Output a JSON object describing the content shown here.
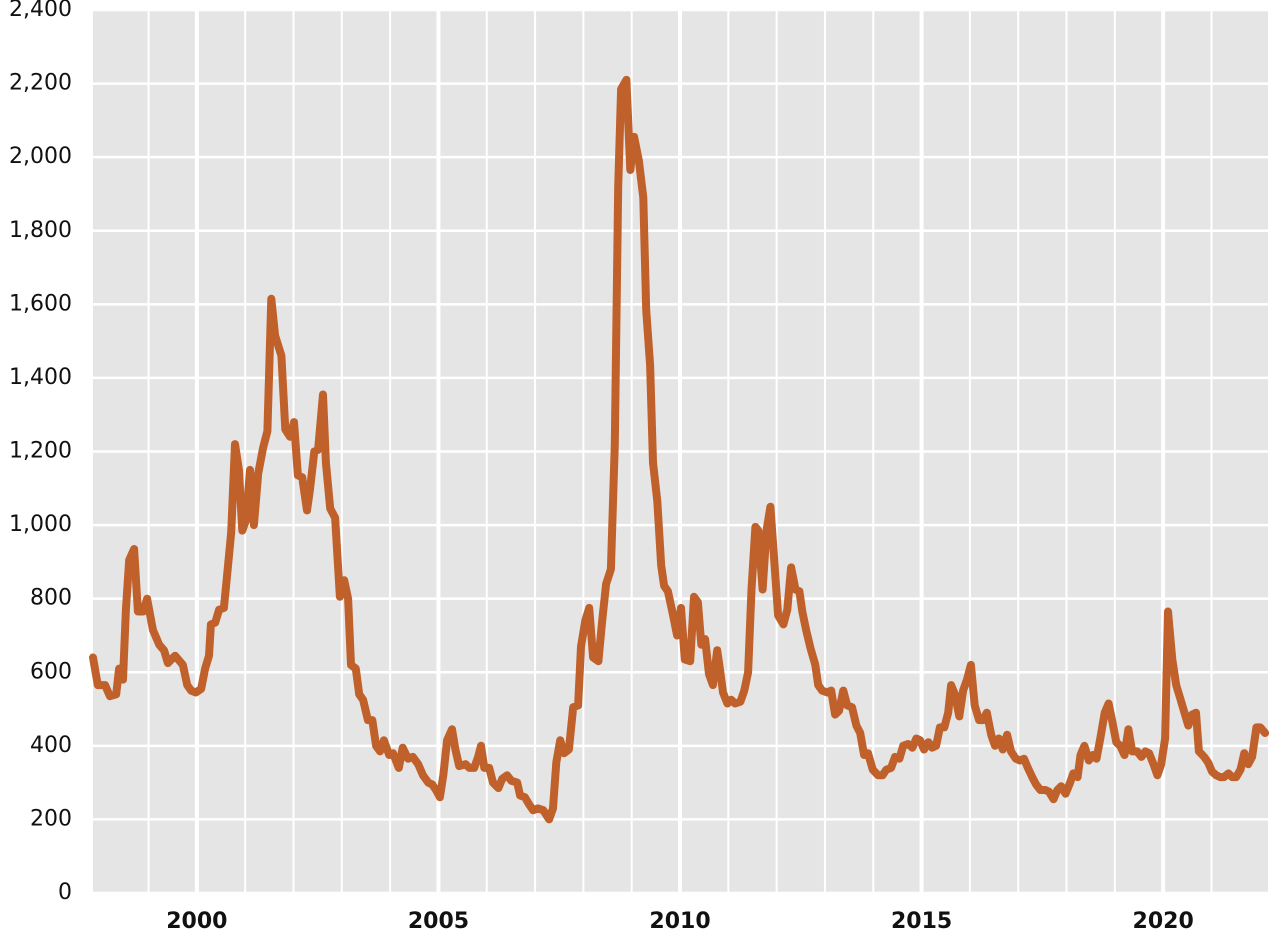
{
  "chart_data": {
    "type": "line",
    "x": [
      1997.85,
      1997.95,
      1998.1,
      1998.2,
      1998.33,
      1998.39,
      1998.47,
      1998.53,
      1998.6,
      1998.7,
      1998.78,
      1998.89,
      1998.97,
      1999.09,
      1999.22,
      1999.32,
      1999.4,
      1999.55,
      1999.71,
      1999.8,
      1999.88,
      1999.98,
      2000.09,
      2000.17,
      2000.25,
      2000.29,
      2000.38,
      2000.46,
      2000.56,
      2000.62,
      2000.71,
      2000.79,
      2000.87,
      2000.94,
      2001.02,
      2001.1,
      2001.18,
      2001.27,
      2001.37,
      2001.46,
      2001.54,
      2001.62,
      2001.75,
      2001.83,
      2001.93,
      2002.01,
      2002.09,
      2002.18,
      2002.28,
      2002.34,
      2002.43,
      2002.51,
      2002.61,
      2002.67,
      2002.76,
      2002.86,
      2002.96,
      2003.05,
      2003.13,
      2003.19,
      2003.29,
      2003.36,
      2003.44,
      2003.54,
      2003.63,
      2003.71,
      2003.79,
      2003.87,
      2003.98,
      2004.06,
      2004.18,
      2004.26,
      2004.37,
      2004.47,
      2004.58,
      2004.68,
      2004.79,
      2004.87,
      2004.95,
      2005.03,
      2005.1,
      2005.18,
      2005.28,
      2005.35,
      2005.43,
      2005.56,
      2005.64,
      2005.74,
      2005.82,
      2005.88,
      2005.95,
      2006.05,
      2006.13,
      2006.24,
      2006.32,
      2006.42,
      2006.51,
      2006.63,
      2006.69,
      2006.79,
      2006.88,
      2006.96,
      2007.06,
      2007.17,
      2007.29,
      2007.37,
      2007.44,
      2007.52,
      2007.6,
      2007.7,
      2007.79,
      2007.89,
      2007.95,
      2008.04,
      2008.12,
      2008.2,
      2008.31,
      2008.39,
      2008.47,
      2008.57,
      2008.65,
      2008.72,
      2008.78,
      2008.89,
      2008.97,
      2009.05,
      2009.15,
      2009.24,
      2009.3,
      2009.38,
      2009.44,
      2009.53,
      2009.61,
      2009.67,
      2009.75,
      2009.84,
      2009.94,
      2010.02,
      2010.1,
      2010.21,
      2010.29,
      2010.37,
      2010.44,
      2010.52,
      2010.6,
      2010.68,
      2010.77,
      2010.83,
      2010.89,
      2010.98,
      2011.06,
      2011.14,
      2011.25,
      2011.33,
      2011.41,
      2011.48,
      2011.56,
      2011.62,
      2011.71,
      2011.79,
      2011.87,
      2011.95,
      2012.03,
      2012.14,
      2012.22,
      2012.3,
      2012.39,
      2012.47,
      2012.53,
      2012.61,
      2012.7,
      2012.8,
      2012.86,
      2012.94,
      2013.05,
      2013.13,
      2013.21,
      2013.29,
      2013.38,
      2013.46,
      2013.56,
      2013.65,
      2013.73,
      2013.81,
      2013.89,
      2013.99,
      2014.1,
      2014.19,
      2014.27,
      2014.37,
      2014.45,
      2014.54,
      2014.62,
      2014.72,
      2014.81,
      2014.89,
      2014.97,
      2015.05,
      2015.14,
      2015.22,
      2015.3,
      2015.38,
      2015.47,
      2015.55,
      2015.61,
      2015.69,
      2015.78,
      2015.86,
      2015.94,
      2016.02,
      2016.1,
      2016.19,
      2016.27,
      2016.35,
      2016.44,
      2016.52,
      2016.6,
      2016.68,
      2016.77,
      2016.85,
      2016.95,
      2017.04,
      2017.12,
      2017.2,
      2017.29,
      2017.37,
      2017.46,
      2017.56,
      2017.64,
      2017.73,
      2017.81,
      2017.89,
      2017.98,
      2018.06,
      2018.14,
      2018.23,
      2018.29,
      2018.37,
      2018.46,
      2018.54,
      2018.62,
      2018.7,
      2018.79,
      2018.87,
      2018.95,
      2019.03,
      2019.11,
      2019.2,
      2019.28,
      2019.36,
      2019.46,
      2019.55,
      2019.63,
      2019.71,
      2019.8,
      2019.88,
      2019.96,
      2020.04,
      2020.1,
      2020.19,
      2020.27,
      2020.35,
      2020.43,
      2020.52,
      2020.6,
      2020.68,
      2020.74,
      2020.85,
      2020.93,
      2021.01,
      2021.1,
      2021.18,
      2021.26,
      2021.35,
      2021.43,
      2021.51,
      2021.6,
      2021.68,
      2021.76,
      2021.84,
      2021.93,
      2022.01,
      2022.11
    ],
    "values": [
      640,
      565,
      565,
      535,
      540,
      610,
      580,
      770,
      905,
      935,
      765,
      765,
      800,
      715,
      675,
      660,
      625,
      645,
      620,
      565,
      550,
      545,
      555,
      610,
      645,
      730,
      735,
      770,
      775,
      855,
      980,
      1220,
      1150,
      985,
      1015,
      1150,
      1000,
      1140,
      1210,
      1255,
      1615,
      1515,
      1460,
      1260,
      1240,
      1280,
      1135,
      1130,
      1040,
      1095,
      1200,
      1205,
      1355,
      1170,
      1045,
      1020,
      805,
      850,
      800,
      620,
      610,
      540,
      525,
      470,
      470,
      400,
      385,
      415,
      375,
      380,
      340,
      395,
      365,
      370,
      350,
      320,
      300,
      295,
      280,
      260,
      320,
      415,
      445,
      390,
      345,
      350,
      340,
      340,
      370,
      400,
      340,
      340,
      300,
      285,
      310,
      320,
      305,
      300,
      265,
      260,
      240,
      225,
      230,
      225,
      200,
      230,
      355,
      415,
      380,
      390,
      505,
      510,
      670,
      740,
      775,
      640,
      630,
      740,
      840,
      880,
      1220,
      1920,
      2185,
      2210,
      1965,
      2055,
      1990,
      1890,
      1585,
      1435,
      1170,
      1065,
      890,
      835,
      820,
      765,
      700,
      775,
      635,
      630,
      805,
      790,
      675,
      690,
      595,
      565,
      660,
      605,
      545,
      515,
      525,
      515,
      520,
      550,
      600,
      825,
      995,
      985,
      825,
      985,
      1050,
      905,
      755,
      730,
      770,
      885,
      825,
      820,
      765,
      715,
      665,
      620,
      565,
      550,
      545,
      550,
      485,
      495,
      550,
      510,
      505,
      455,
      435,
      375,
      380,
      335,
      320,
      320,
      335,
      340,
      370,
      365,
      400,
      405,
      395,
      420,
      415,
      390,
      410,
      395,
      400,
      450,
      450,
      490,
      565,
      540,
      480,
      550,
      580,
      620,
      510,
      470,
      470,
      490,
      430,
      400,
      420,
      390,
      430,
      385,
      365,
      360,
      365,
      340,
      315,
      295,
      280,
      280,
      275,
      255,
      280,
      290,
      270,
      295,
      325,
      315,
      375,
      400,
      360,
      375,
      365,
      420,
      490,
      515,
      465,
      410,
      400,
      375,
      445,
      385,
      385,
      370,
      385,
      380,
      350,
      320,
      350,
      420,
      765,
      635,
      565,
      530,
      495,
      455,
      485,
      490,
      385,
      370,
      355,
      330,
      320,
      315,
      315,
      325,
      315,
      315,
      335,
      380,
      350,
      370,
      450,
      450,
      435
    ],
    "color": "#c0612b",
    "xlim": [
      1997.85,
      2022.17
    ],
    "xticks": [
      2000,
      2005,
      2010,
      2015,
      2020
    ],
    "x_minor_ticks": [
      1999,
      2001,
      2002,
      2003,
      2004,
      2006,
      2007,
      2008,
      2009,
      2011,
      2012,
      2013,
      2014,
      2016,
      2017,
      2018,
      2019,
      2021
    ],
    "ylim": [
      0,
      2400
    ],
    "yticks": [
      0,
      200,
      400,
      600,
      800,
      {
        "value": 1000,
        "label": "1,000"
      },
      {
        "value": 1200,
        "label": "1,200"
      },
      {
        "value": 1400,
        "label": "1,400"
      },
      {
        "value": 1600,
        "label": "1,600"
      },
      {
        "value": 1800,
        "label": "1,800"
      },
      {
        "value": 2000,
        "label": "2,000"
      },
      {
        "value": 2200,
        "label": "2,200"
      },
      {
        "value": 2400,
        "label": "2,400"
      }
    ],
    "grid": true
  }
}
